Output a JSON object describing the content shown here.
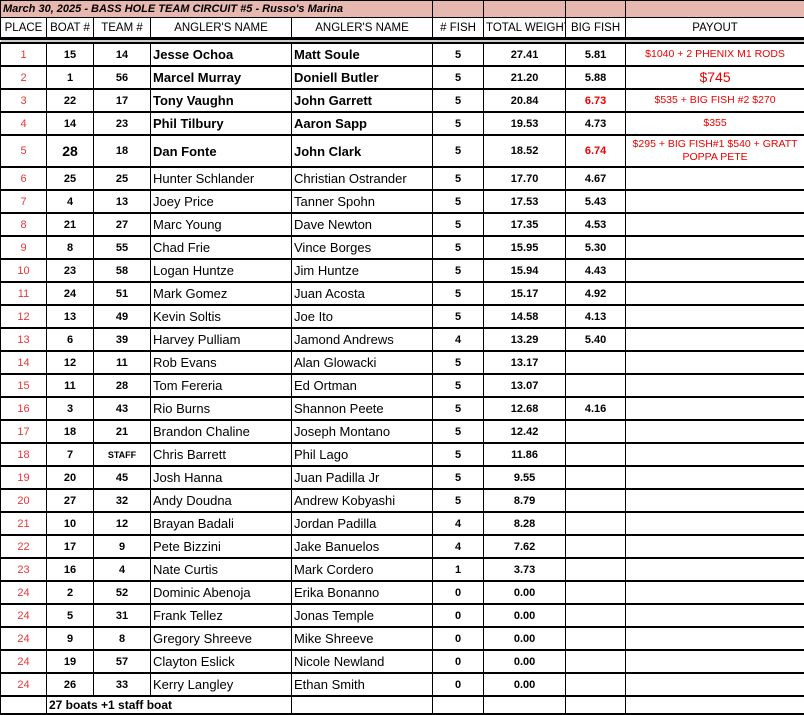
{
  "title": "March 30, 2025 - BASS HOLE TEAM CIRCUIT #5 - Russo's Marina",
  "headers": [
    "PLACE",
    "BOAT #",
    "TEAM #",
    "ANGLER'S NAME",
    "ANGLER'S NAME",
    "# FISH",
    "TOTAL WEIGHT",
    "BIG FISH",
    "PAYOUT"
  ],
  "accent_color": "#e53935",
  "title_bg": "#e6b8af",
  "rows": [
    {
      "place": "1",
      "boat": "15",
      "team": "14",
      "a1": "Jesse Ochoa",
      "a2": "Matt Soule",
      "fish": "5",
      "weight": "27.41",
      "big": "5.81",
      "payout": "$1040 + 2 PHENIX M1 RODS"
    },
    {
      "place": "2",
      "boat": "1",
      "team": "56",
      "a1": "Marcel Murray",
      "a2": "Doniell Butler",
      "fish": "5",
      "weight": "21.20",
      "big": "5.88",
      "payout": "$745"
    },
    {
      "place": "3",
      "boat": "22",
      "team": "17",
      "a1": "Tony Vaughn",
      "a2": "John Garrett",
      "fish": "5",
      "weight": "20.84",
      "big": "6.73",
      "payout": "$535 + BIG FISH #2 $270"
    },
    {
      "place": "4",
      "boat": "14",
      "team": "23",
      "a1": "Phil Tilbury",
      "a2": "Aaron Sapp",
      "fish": "5",
      "weight": "19.53",
      "big": "4.73",
      "payout": "$355"
    },
    {
      "place": "5",
      "boat": "28",
      "team": "18",
      "a1": "Dan Fonte",
      "a2": "John Clark",
      "fish": "5",
      "weight": "18.52",
      "big": "6.74",
      "payout": "$295 + BIG FISH#1 $540 + GRATT POPPA PETE"
    },
    {
      "place": "6",
      "boat": "25",
      "team": "25",
      "a1": "Hunter Schlander",
      "a2": "Christian Ostrander",
      "fish": "5",
      "weight": "17.70",
      "big": "4.67",
      "payout": ""
    },
    {
      "place": "7",
      "boat": "4",
      "team": "13",
      "a1": "Joey Price",
      "a2": "Tanner Spohn",
      "fish": "5",
      "weight": "17.53",
      "big": "5.43",
      "payout": ""
    },
    {
      "place": "8",
      "boat": "21",
      "team": "27",
      "a1": "Marc Young",
      "a2": "Dave Newton",
      "fish": "5",
      "weight": "17.35",
      "big": "4.53",
      "payout": ""
    },
    {
      "place": "9",
      "boat": "8",
      "team": "55",
      "a1": "Chad Frie",
      "a2": "Vince Borges",
      "fish": "5",
      "weight": "15.95",
      "big": "5.30",
      "payout": ""
    },
    {
      "place": "10",
      "boat": "23",
      "team": "58",
      "a1": "Logan Huntze",
      "a2": "Jim Huntze",
      "fish": "5",
      "weight": "15.94",
      "big": "4.43",
      "payout": ""
    },
    {
      "place": "11",
      "boat": "24",
      "team": "51",
      "a1": "Mark  Gomez",
      "a2": "Juan Acosta",
      "fish": "5",
      "weight": "15.17",
      "big": "4.92",
      "payout": ""
    },
    {
      "place": "12",
      "boat": "13",
      "team": "49",
      "a1": "Kevin Soltis",
      "a2": "Joe Ito",
      "fish": "5",
      "weight": "14.58",
      "big": "4.13",
      "payout": ""
    },
    {
      "place": "13",
      "boat": "6",
      "team": "39",
      "a1": "Harvey Pulliam",
      "a2": "Jamond Andrews",
      "fish": "4",
      "weight": "13.29",
      "big": "5.40",
      "payout": ""
    },
    {
      "place": "14",
      "boat": "12",
      "team": "11",
      "a1": "Rob Evans",
      "a2": "Alan Glowacki",
      "fish": "5",
      "weight": "13.17",
      "big": "",
      "payout": ""
    },
    {
      "place": "15",
      "boat": "11",
      "team": "28",
      "a1": "Tom Fereria",
      "a2": "Ed Ortman",
      "fish": "5",
      "weight": "13.07",
      "big": "",
      "payout": ""
    },
    {
      "place": "16",
      "boat": "3",
      "team": "43",
      "a1": "Rio Burns",
      "a2": "Shannon Peete",
      "fish": "5",
      "weight": "12.68",
      "big": "4.16",
      "payout": ""
    },
    {
      "place": "17",
      "boat": "18",
      "team": "21",
      "a1": "Brandon Chaline",
      "a2": "Joseph Montano",
      "fish": "5",
      "weight": "12.42",
      "big": "",
      "payout": ""
    },
    {
      "place": "18",
      "boat": "7",
      "team": "STAFF",
      "a1": "Chris Barrett",
      "a2": "Phil Lago",
      "fish": "5",
      "weight": "11.86",
      "big": "",
      "payout": ""
    },
    {
      "place": "19",
      "boat": "20",
      "team": "45",
      "a1": "Josh Hanna",
      "a2": "Juan Padilla Jr",
      "fish": "5",
      "weight": "9.55",
      "big": "",
      "payout": ""
    },
    {
      "place": "20",
      "boat": "27",
      "team": "32",
      "a1": "Andy Doudna",
      "a2": "Andrew Kobyashi",
      "fish": "5",
      "weight": "8.79",
      "big": "",
      "payout": ""
    },
    {
      "place": "21",
      "boat": "10",
      "team": "12",
      "a1": "Brayan Badali",
      "a2": "Jordan Padilla",
      "fish": "4",
      "weight": "8.28",
      "big": "",
      "payout": ""
    },
    {
      "place": "22",
      "boat": "17",
      "team": "9",
      "a1": "Pete Bizzini",
      "a2": "Jake Banuelos",
      "fish": "4",
      "weight": "7.62",
      "big": "",
      "payout": ""
    },
    {
      "place": "23",
      "boat": "16",
      "team": "4",
      "a1": "Nate Curtis",
      "a2": "Mark Cordero",
      "fish": "1",
      "weight": "3.73",
      "big": "",
      "payout": ""
    },
    {
      "place": "24",
      "boat": "2",
      "team": "52",
      "a1": "Dominic Abenoja",
      "a2": "Erika Bonanno",
      "fish": "0",
      "weight": "0.00",
      "big": "",
      "payout": ""
    },
    {
      "place": "24",
      "boat": "5",
      "team": "31",
      "a1": "Frank Tellez",
      "a2": "Jonas Temple",
      "fish": "0",
      "weight": "0.00",
      "big": "",
      "payout": ""
    },
    {
      "place": "24",
      "boat": "9",
      "team": "8",
      "a1": "Gregory Shreeve",
      "a2": "Mike Shreeve",
      "fish": "0",
      "weight": "0.00",
      "big": "",
      "payout": ""
    },
    {
      "place": "24",
      "boat": "19",
      "team": "57",
      "a1": "Clayton Eslick",
      "a2": "Nicole Newland",
      "fish": "0",
      "weight": "0.00",
      "big": "",
      "payout": ""
    },
    {
      "place": "24",
      "boat": "26",
      "team": "33",
      "a1": "Kerry Langley",
      "a2": "Ethan Smith",
      "fish": "0",
      "weight": "0.00",
      "big": "",
      "payout": ""
    }
  ],
  "footer": "27 boats +1 staff boat"
}
